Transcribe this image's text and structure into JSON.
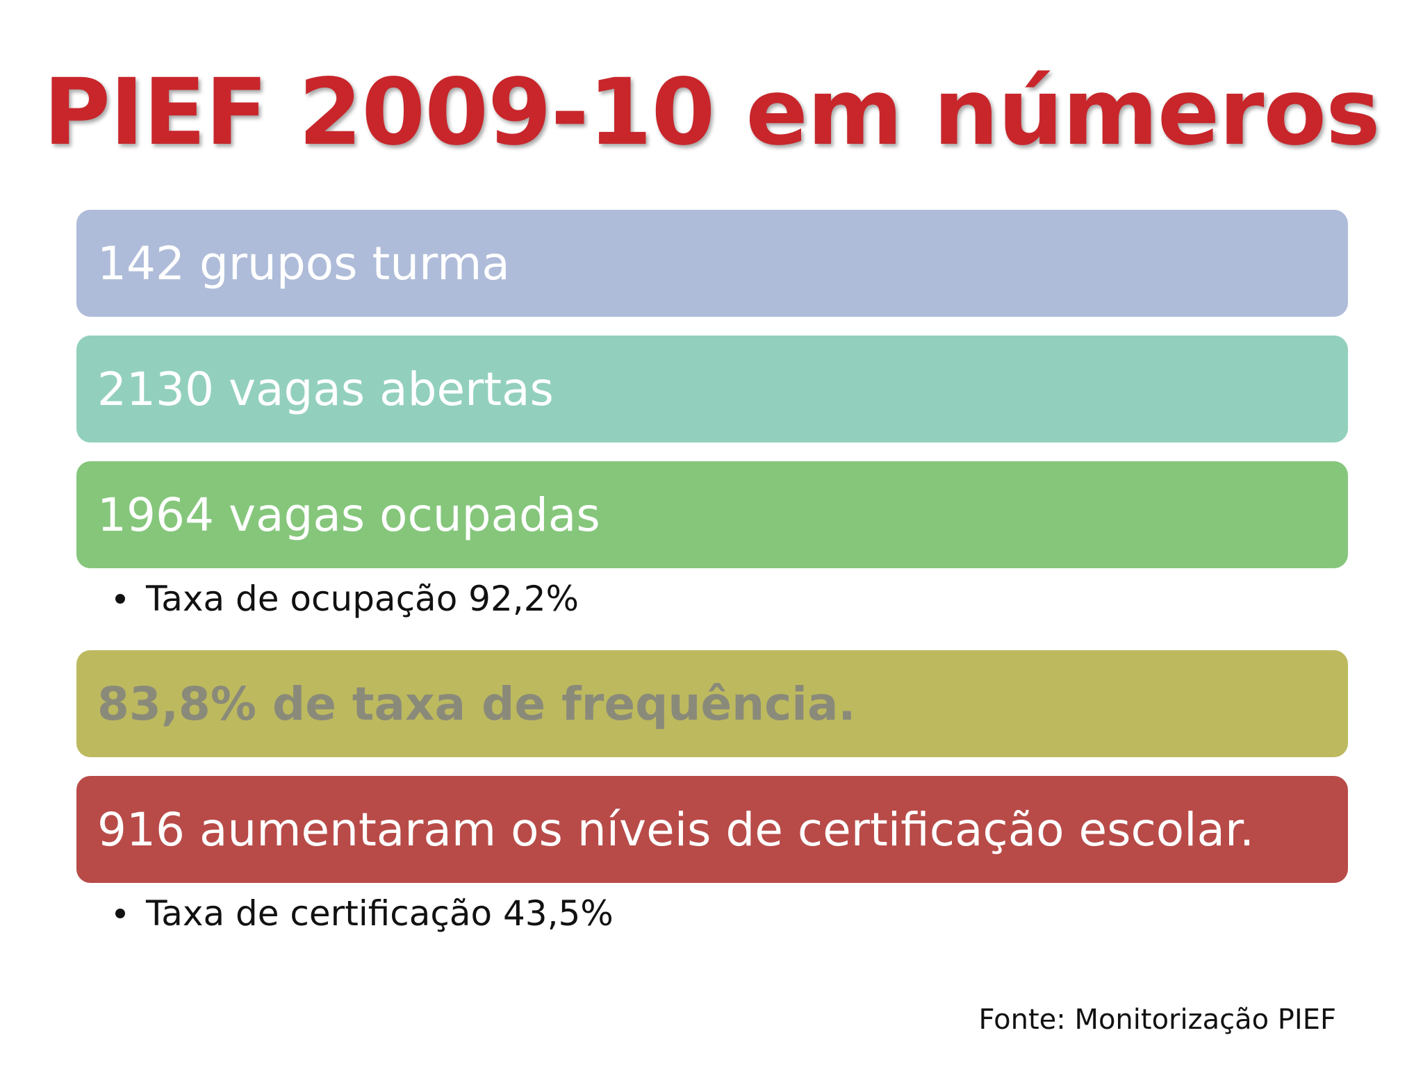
{
  "title": "PIEF 2009-10 em números",
  "items": [
    {
      "text": "142 grupos turma",
      "color": "#aebcd9"
    },
    {
      "text": "2130 vagas abertas",
      "color": "#92d0bd"
    },
    {
      "text": "1964 vagas ocupadas",
      "color": "#85c67b"
    },
    {
      "text": "83,8%  de taxa de frequência.",
      "color": "#bdb95f"
    },
    {
      "text": "916 aumentaram os níveis de certificação escolar.",
      "color": "#b84b48"
    }
  ],
  "bullets": [
    {
      "text": "Taxa de ocupação 92,2%"
    },
    {
      "text": "Taxa de certificação 43,5%"
    }
  ],
  "source": "Fonte: Monitorização PIEF",
  "title_color": "#c8262b"
}
